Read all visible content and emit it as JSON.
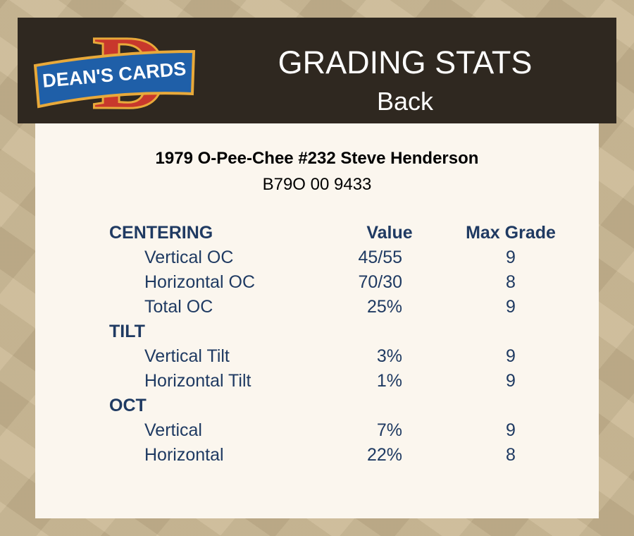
{
  "header": {
    "logo": {
      "letter": "D",
      "text": "DEAN'S CARDS"
    },
    "title": "GRADING STATS",
    "subtitle": "Back"
  },
  "card": {
    "title": "1979 O-Pee-Chee #232 Steve Henderson",
    "code": "B79O 00 9433"
  },
  "table": {
    "columns": [
      "Value",
      "Max Grade"
    ],
    "sections": [
      {
        "name": "CENTERING",
        "rows": [
          [
            "Vertical OC",
            "45/55",
            9
          ],
          [
            "Horizontal OC",
            "70/30",
            8
          ],
          [
            "Total OC",
            "25%",
            9
          ]
        ]
      },
      {
        "name": "TILT",
        "rows": [
          [
            "Vertical Tilt",
            "3%",
            9
          ],
          [
            "Horizontal Tilt",
            "1%",
            9
          ]
        ]
      },
      {
        "name": "OCT",
        "rows": [
          [
            "Vertical",
            "7%",
            9
          ],
          [
            "Horizontal",
            "22%",
            8
          ]
        ]
      }
    ]
  }
}
